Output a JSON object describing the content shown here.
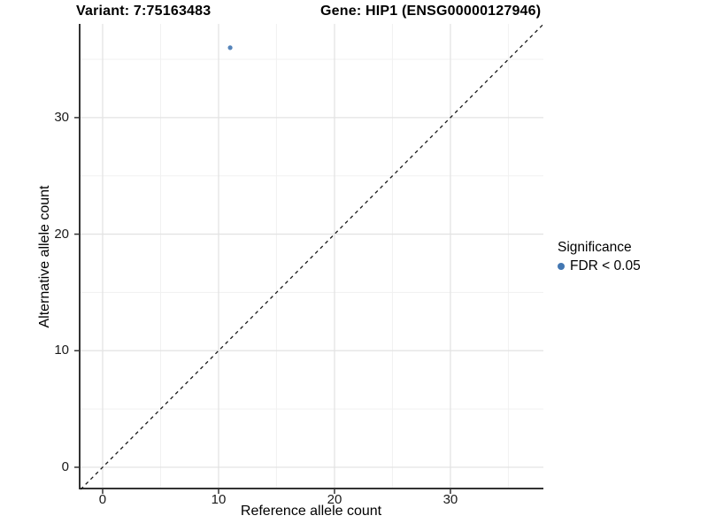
{
  "titles": {
    "variant": "Variant: 7:75163483",
    "gene": "Gene: HIP1 (ENSG00000127946)"
  },
  "legend": {
    "title": "Significance",
    "items": [
      {
        "label": "FDR < 0.05",
        "color": "#4377b2"
      }
    ]
  },
  "chart_data": {
    "type": "scatter",
    "xlabel": "Reference allele count",
    "ylabel": "Alternative allele count",
    "xlim": [
      -2.06,
      38.02
    ],
    "ylim": [
      -1.9,
      38.04
    ],
    "xticks": [
      0,
      10,
      20,
      30
    ],
    "yticks": [
      0,
      10,
      20,
      30
    ],
    "xticks_minor": [
      5,
      15,
      25,
      35
    ],
    "yticks_minor": [
      5,
      15,
      25,
      35
    ],
    "grid": true,
    "legend_position": "right",
    "series": [
      {
        "name": "FDR < 0.05",
        "color": "#4377b2",
        "points": [
          {
            "x": 11,
            "y": 36
          }
        ]
      }
    ],
    "abline": {
      "slope": 1,
      "intercept": 0,
      "style": "dashed",
      "color": "#1a1a1a"
    },
    "colors": {
      "grid_major": "#e3e3e3",
      "grid_minor": "#f1f1f1",
      "axis_line": "#333333",
      "tick_text": "#1a1a1a"
    }
  }
}
